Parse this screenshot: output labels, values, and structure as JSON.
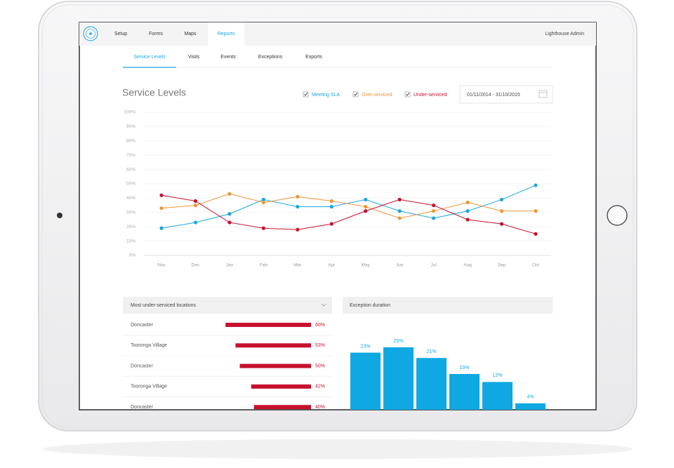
{
  "nav": {
    "items": [
      "Setup",
      "Forms",
      "Maps",
      "Reports"
    ],
    "active": 3,
    "user": "Lighthouse Admin"
  },
  "tabs": {
    "items": [
      "Service Levels",
      "Visits",
      "Events",
      "Exceptions",
      "Exports"
    ],
    "active": 0
  },
  "date_range": "01/11/2014 - 31/10/2015",
  "chart_data": [
    {
      "type": "line",
      "title": "Service Levels",
      "categories": [
        "Nov",
        "Dec",
        "Jan",
        "Feb",
        "Mar",
        "Apr",
        "May",
        "Jun",
        "Jul",
        "Aug",
        "Sep",
        "Oct"
      ],
      "series": [
        {
          "name": "Meeting SLA",
          "color": "#1aa7e0",
          "values": [
            19,
            23,
            29,
            39,
            34,
            34,
            39,
            31,
            26,
            31,
            39,
            49
          ]
        },
        {
          "name": "Over-serviced",
          "color": "#f0953a",
          "values": [
            33,
            35,
            43,
            37,
            41,
            38,
            34,
            26,
            31,
            37,
            31,
            31
          ]
        },
        {
          "name": "Under-serviced",
          "color": "#c8102e",
          "values": [
            42,
            38,
            23,
            19,
            18,
            22,
            31,
            39,
            35,
            25,
            22,
            15
          ]
        }
      ],
      "ylim": [
        0,
        100
      ],
      "yticks": [
        {
          "value": 0,
          "label": "0%"
        },
        {
          "value": 10,
          "label": "10%"
        },
        {
          "value": 20,
          "label": "20%"
        },
        {
          "value": 30,
          "label": "30%"
        },
        {
          "value": 40,
          "label": "40%"
        },
        {
          "value": 50,
          "label": "50%"
        },
        {
          "value": 60,
          "label": "60%"
        },
        {
          "value": 70,
          "label": "70%"
        },
        {
          "value": 80,
          "label": "80%"
        },
        {
          "value": 90,
          "label": "90%"
        },
        {
          "value": 100,
          "label": "100%"
        }
      ],
      "grid": true
    },
    {
      "type": "hbar",
      "title": "Most under-serviced locations",
      "categories": [
        "Doncaster",
        "Tooronga Village",
        "Doncaster",
        "Tooronga Village",
        "Doncaster"
      ],
      "values": [
        60,
        53,
        50,
        42,
        40
      ],
      "value_labels": [
        "60%",
        "53%",
        "50%",
        "42%",
        "40%"
      ],
      "color": "#c8102e"
    },
    {
      "type": "bar",
      "title": "Exception duration",
      "values": [
        23,
        25,
        21,
        15,
        12,
        4
      ],
      "value_labels": [
        "23%",
        "25%",
        "21%",
        "15%",
        "12%",
        "4%"
      ],
      "color": "#10a8e2"
    }
  ]
}
